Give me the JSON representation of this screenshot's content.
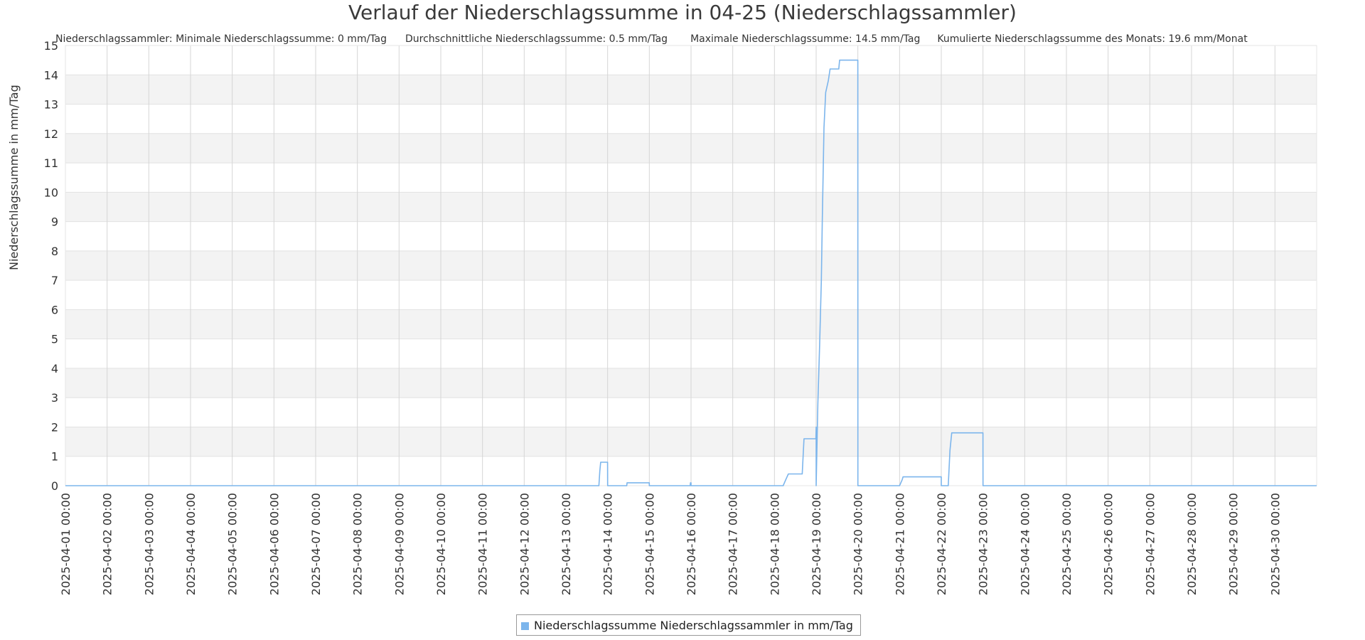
{
  "chart_data": {
    "type": "line",
    "title": "Verlauf der Niederschlagssumme in 04-25 (Niederschlagssammler)",
    "stats": [
      "Niederschlagssammler: Minimale Niederschlagssumme: 0 mm/Tag",
      "Durchschnittliche Niederschlagssumme: 0.5 mm/Tag",
      "Maximale Niederschlagssumme: 14.5 mm/Tag",
      "Kumulierte Niederschlagssumme des Monats: 19.6 mm/Monat"
    ],
    "ylabel": "Niederschlagssumme in mm/Tag",
    "xlabel": "",
    "ylim": [
      0,
      15
    ],
    "yticks": [
      0,
      1,
      2,
      3,
      4,
      5,
      6,
      7,
      8,
      9,
      10,
      11,
      12,
      13,
      14,
      15
    ],
    "xlim": [
      "2025-04-01 00:00",
      "2025-05-01 00:00"
    ],
    "xticks": [
      "2025-04-01 00:00",
      "2025-04-02 00:00",
      "2025-04-03 00:00",
      "2025-04-04 00:00",
      "2025-04-05 00:00",
      "2025-04-06 00:00",
      "2025-04-07 00:00",
      "2025-04-08 00:00",
      "2025-04-09 00:00",
      "2025-04-10 00:00",
      "2025-04-11 00:00",
      "2025-04-12 00:00",
      "2025-04-13 00:00",
      "2025-04-14 00:00",
      "2025-04-15 00:00",
      "2025-04-16 00:00",
      "2025-04-17 00:00",
      "2025-04-18 00:00",
      "2025-04-19 00:00",
      "2025-04-20 00:00",
      "2025-04-21 00:00",
      "2025-04-22 00:00",
      "2025-04-23 00:00",
      "2025-04-24 00:00",
      "2025-04-25 00:00",
      "2025-04-26 00:00",
      "2025-04-27 00:00",
      "2025-04-28 00:00",
      "2025-04-29 00:00",
      "2025-04-30 00:00"
    ],
    "grid": true,
    "legend_position": "bottom-center",
    "series": [
      {
        "name": "Niederschlagssumme Niederschlagssammler in mm/Tag",
        "color": "#7cb5ec",
        "points": [
          [
            "2025-04-01 00:00",
            0
          ],
          [
            "2025-04-13 19:00",
            0
          ],
          [
            "2025-04-13 19:30",
            0.5
          ],
          [
            "2025-04-13 20:00",
            0.8
          ],
          [
            "2025-04-13 23:59",
            0.8
          ],
          [
            "2025-04-14 00:00",
            0
          ],
          [
            "2025-04-14 11:00",
            0
          ],
          [
            "2025-04-14 11:10",
            0.1
          ],
          [
            "2025-04-14 23:59",
            0.1
          ],
          [
            "2025-04-15 00:00",
            0
          ],
          [
            "2025-04-15 23:30",
            0
          ],
          [
            "2025-04-15 23:40",
            0.1
          ],
          [
            "2025-04-15 23:59",
            0.1
          ],
          [
            "2025-04-16 00:00",
            0
          ],
          [
            "2025-04-18 05:00",
            0
          ],
          [
            "2025-04-18 06:30",
            0.2
          ],
          [
            "2025-04-18 08:00",
            0.4
          ],
          [
            "2025-04-18 16:00",
            0.4
          ],
          [
            "2025-04-18 17:00",
            1.6
          ],
          [
            "2025-04-18 23:50",
            1.6
          ],
          [
            "2025-04-18 23:59",
            2.0
          ],
          [
            "2025-04-19 00:00",
            0
          ],
          [
            "2025-04-19 01:00",
            2.8
          ],
          [
            "2025-04-19 02:00",
            4.8
          ],
          [
            "2025-04-19 03:00",
            7.0
          ],
          [
            "2025-04-19 03:30",
            9.0
          ],
          [
            "2025-04-19 04:30",
            12.2
          ],
          [
            "2025-04-19 05:30",
            13.4
          ],
          [
            "2025-04-19 07:00",
            13.8
          ],
          [
            "2025-04-19 08:00",
            14.2
          ],
          [
            "2025-04-19 13:00",
            14.2
          ],
          [
            "2025-04-19 13:30",
            14.5
          ],
          [
            "2025-04-19 23:59",
            14.5
          ],
          [
            "2025-04-20 00:00",
            0
          ],
          [
            "2025-04-21 00:00",
            0
          ],
          [
            "2025-04-21 01:30",
            0.2
          ],
          [
            "2025-04-21 02:00",
            0.3
          ],
          [
            "2025-04-21 23:59",
            0.3
          ],
          [
            "2025-04-22 00:00",
            0
          ],
          [
            "2025-04-22 04:00",
            0
          ],
          [
            "2025-04-22 05:00",
            1.2
          ],
          [
            "2025-04-22 06:00",
            1.8
          ],
          [
            "2025-04-22 23:59",
            1.8
          ],
          [
            "2025-04-23 00:00",
            0
          ],
          [
            "2025-05-01 00:00",
            0
          ]
        ]
      }
    ]
  }
}
